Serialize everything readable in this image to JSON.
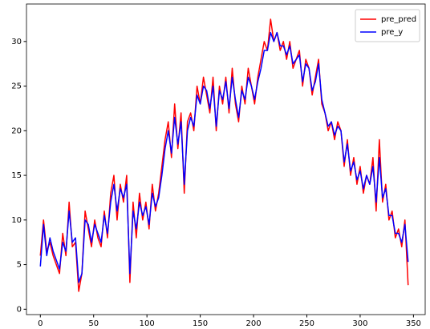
{
  "chart_data": {
    "type": "line",
    "x": [
      0,
      3,
      6,
      9,
      12,
      15,
      18,
      21,
      24,
      27,
      30,
      33,
      36,
      39,
      42,
      45,
      48,
      51,
      54,
      57,
      60,
      63,
      66,
      69,
      72,
      75,
      78,
      81,
      84,
      87,
      90,
      93,
      96,
      99,
      102,
      105,
      108,
      111,
      114,
      117,
      120,
      123,
      126,
      129,
      132,
      135,
      138,
      141,
      144,
      147,
      150,
      153,
      156,
      159,
      162,
      165,
      168,
      171,
      174,
      177,
      180,
      183,
      186,
      189,
      192,
      195,
      198,
      201,
      204,
      207,
      210,
      213,
      216,
      219,
      222,
      225,
      228,
      231,
      234,
      237,
      240,
      243,
      246,
      249,
      252,
      255,
      258,
      261,
      264,
      267,
      270,
      273,
      276,
      279,
      282,
      285,
      288,
      291,
      294,
      297,
      300,
      303,
      306,
      309,
      312,
      315,
      318,
      321,
      324,
      327,
      330,
      333,
      336,
      339,
      342,
      345
    ],
    "series": [
      {
        "name": "pre_pred",
        "color": "#ff0000",
        "values": [
          6,
          10,
          6.5,
          7.5,
          6,
          5,
          4,
          8.5,
          6,
          12,
          7,
          7.5,
          2,
          4,
          11,
          9,
          7,
          10,
          8,
          7,
          11,
          8,
          13,
          15,
          10,
          14,
          12,
          15,
          3,
          12,
          8,
          13,
          10,
          12,
          9,
          14,
          11,
          13,
          16,
          19,
          21,
          17,
          23,
          18,
          22,
          13,
          21,
          22,
          20,
          25,
          23,
          26,
          24,
          22,
          26,
          20,
          25,
          23,
          26,
          22,
          27,
          23,
          21,
          25,
          23,
          27,
          25,
          23,
          26,
          28,
          30,
          29,
          32.5,
          30,
          31,
          29,
          30,
          28,
          30,
          27,
          28,
          29,
          25,
          28,
          27,
          24,
          26,
          28,
          23,
          22,
          20,
          21,
          19,
          21,
          20,
          16,
          19,
          15,
          17,
          14,
          16,
          13,
          15,
          14,
          17,
          11,
          19,
          12,
          14,
          10,
          11,
          8,
          9,
          7,
          10,
          2.7
        ]
      },
      {
        "name": "pre_y",
        "color": "#0000ff",
        "values": [
          4.8,
          9.5,
          6,
          8,
          6.5,
          5.5,
          4.5,
          7.5,
          6.5,
          11,
          7.5,
          8,
          3,
          4,
          10,
          9.5,
          7.5,
          9.5,
          8.5,
          7.5,
          10.5,
          8.5,
          12,
          14,
          11,
          13.5,
          12.5,
          14,
          4,
          11,
          9,
          12,
          10.5,
          11.5,
          9.5,
          13,
          11.5,
          12.5,
          15,
          18,
          20,
          17.5,
          21.5,
          18.5,
          21,
          14,
          20,
          21.5,
          20.5,
          24,
          23,
          25,
          24.5,
          22.5,
          25,
          20.5,
          24.5,
          23.5,
          25.5,
          22.5,
          26,
          23.5,
          21.5,
          24.5,
          23.5,
          26,
          25,
          23.5,
          25.5,
          27,
          29,
          29,
          31,
          30,
          31,
          29.5,
          29.5,
          28.5,
          29.5,
          27.5,
          28,
          28.5,
          25.5,
          27.5,
          27,
          24.5,
          25.5,
          27.5,
          23.5,
          22,
          20.5,
          21,
          19.5,
          20.5,
          20,
          16.5,
          18.5,
          15.5,
          16.5,
          14.5,
          15.5,
          13.5,
          15,
          14,
          16,
          12,
          17,
          12.5,
          13.5,
          10.5,
          10.5,
          8.5,
          8.5,
          7.5,
          9.5,
          5.3
        ]
      }
    ],
    "xlim": [
      -13,
      361
    ],
    "ylim": [
      -0.6,
      34.2
    ],
    "xticks": [
      0,
      50,
      100,
      150,
      200,
      250,
      300,
      350
    ],
    "yticks": [
      0,
      5,
      10,
      15,
      20,
      25,
      30
    ],
    "legend": "upper right"
  }
}
